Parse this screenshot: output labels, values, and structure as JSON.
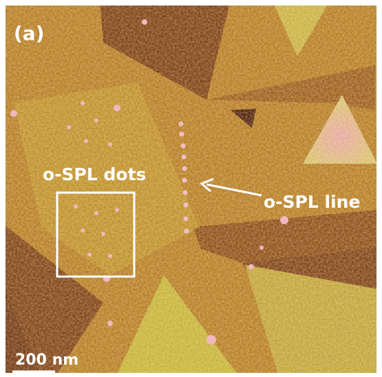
{
  "panel_label": "(a)",
  "annotations": {
    "dots": "o-SPL dots",
    "line": "o-SPL line"
  },
  "scale_bar": "200 nm"
}
